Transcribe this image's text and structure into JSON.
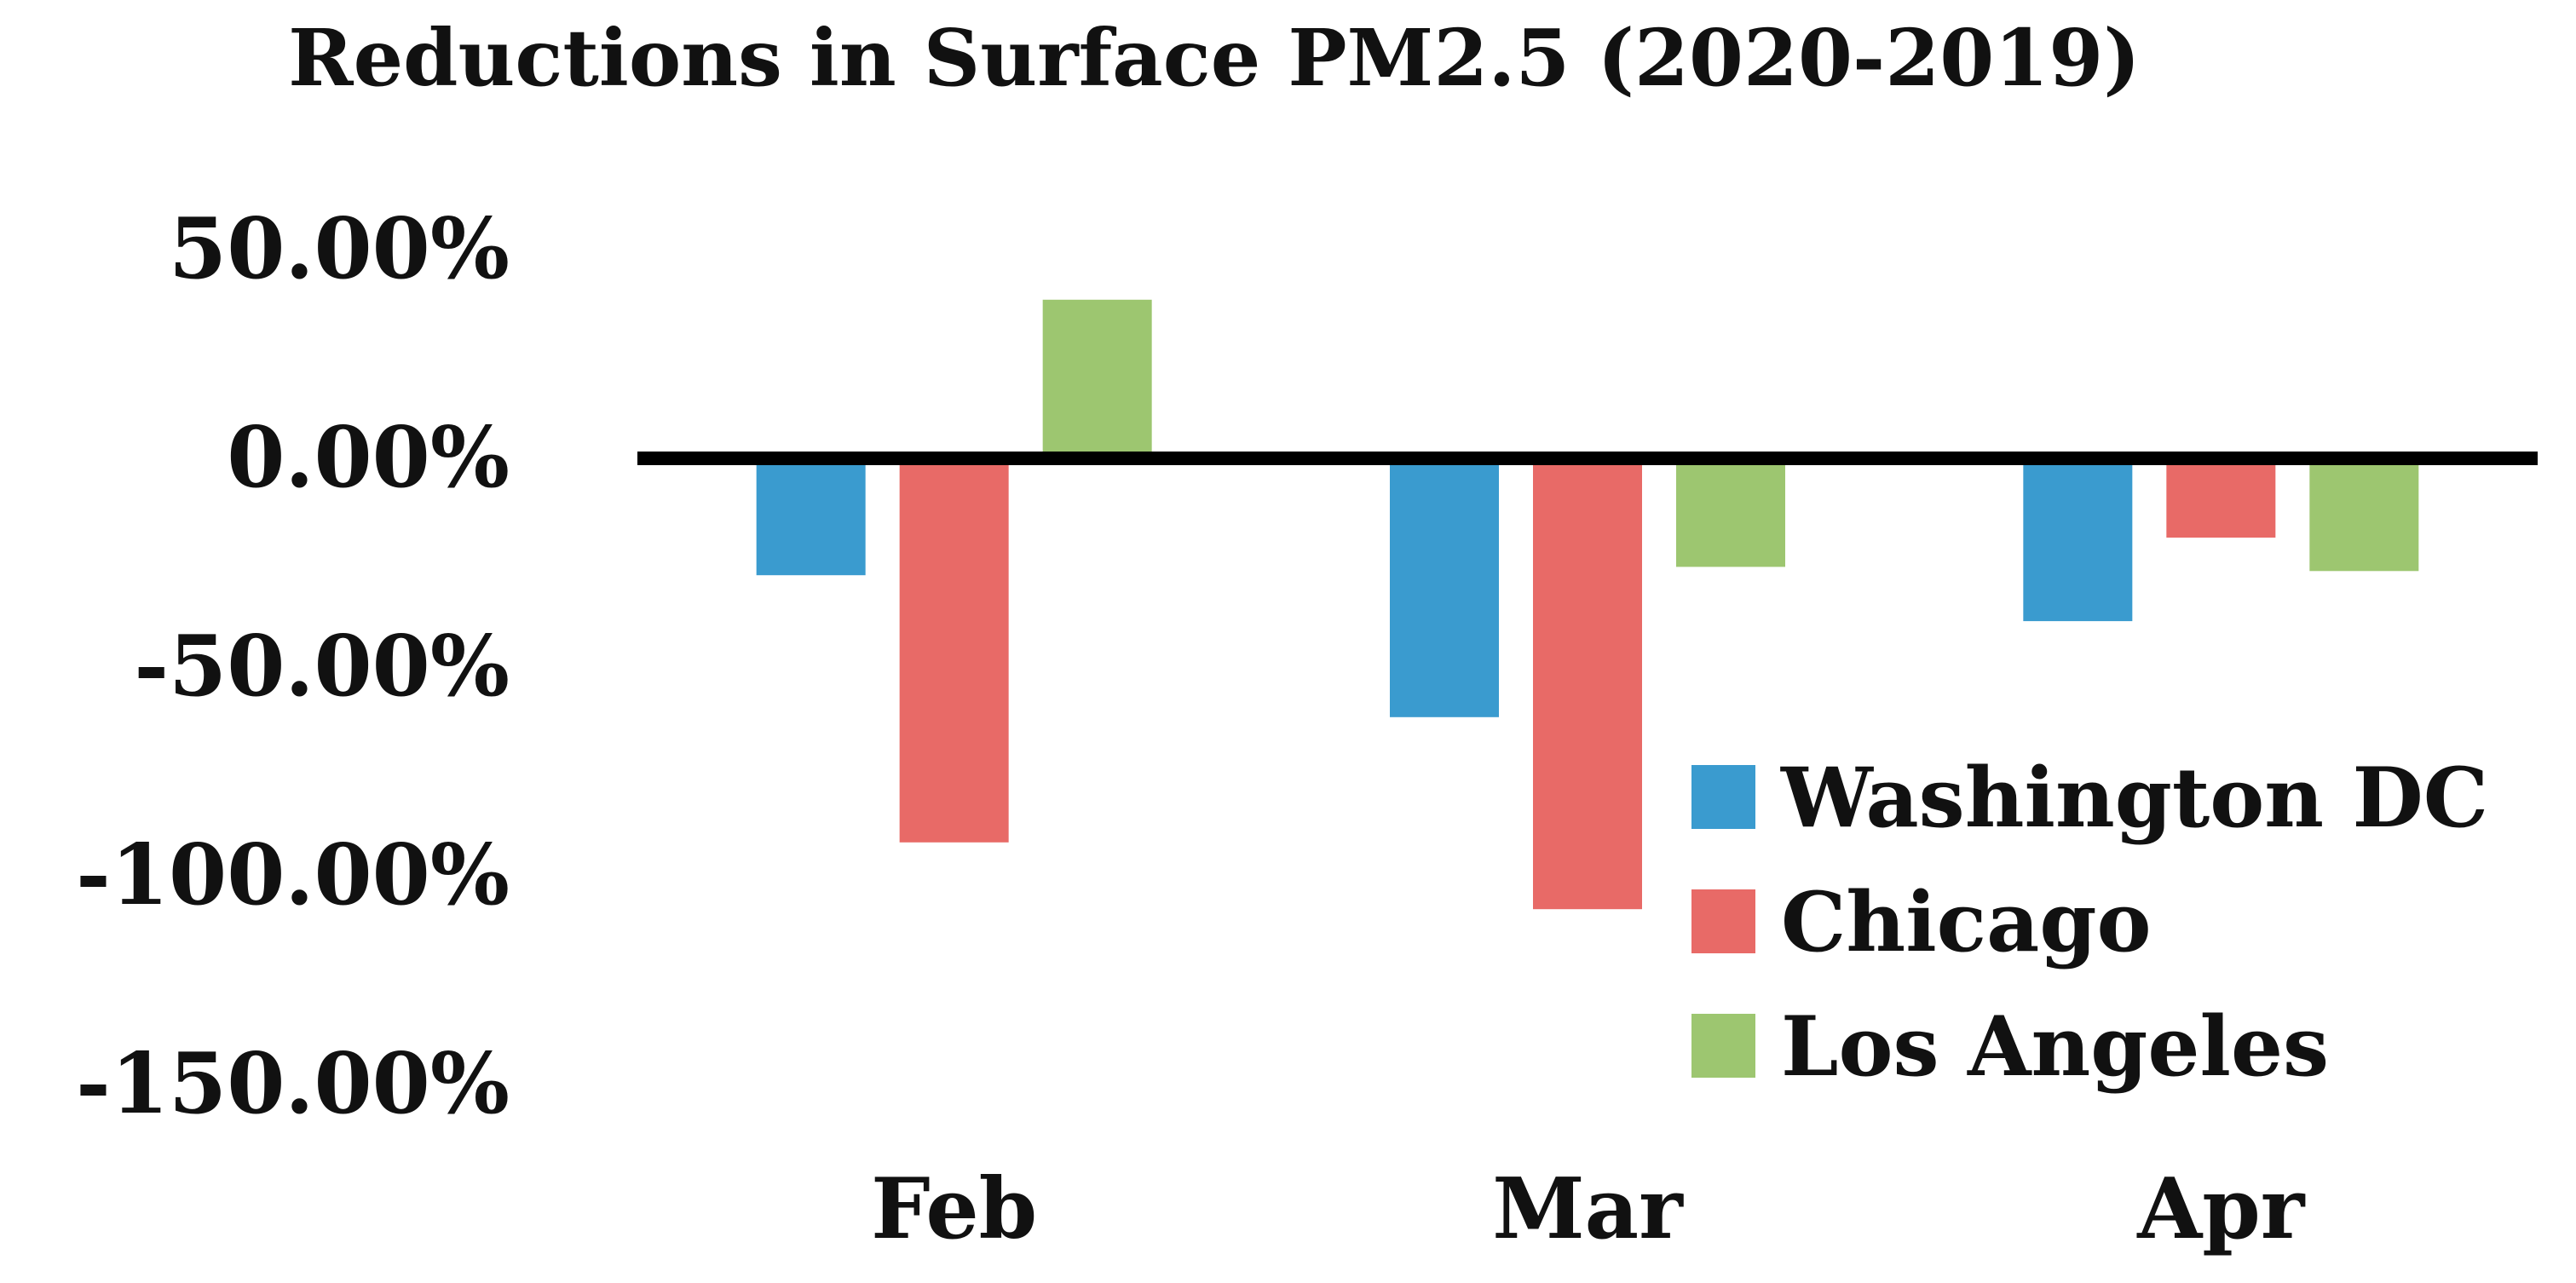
{
  "chart_data": {
    "type": "bar",
    "title": "Reductions in Surface PM2.5 (2020-2019)",
    "xlabel": "",
    "ylabel": "",
    "categories": [
      "Feb",
      "Mar",
      "Apr"
    ],
    "series": [
      {
        "name": "Washington DC",
        "color": "#3A9BCF",
        "values": [
          -28,
          -62,
          -39
        ]
      },
      {
        "name": "Chicago",
        "color": "#E86A67",
        "values": [
          -92,
          -108,
          -19
        ]
      },
      {
        "name": "Los Angeles",
        "color": "#9DC670",
        "values": [
          38,
          -26,
          -27
        ]
      }
    ],
    "ylim": [
      -150,
      50
    ],
    "yticks": [
      50,
      0,
      -50,
      -100,
      -150
    ],
    "ytick_labels": [
      "50.00%",
      "0.00%",
      "-50.00%",
      "-100.00%",
      "-150.00%"
    ],
    "grid": false,
    "legend_position": "bottom-right"
  }
}
